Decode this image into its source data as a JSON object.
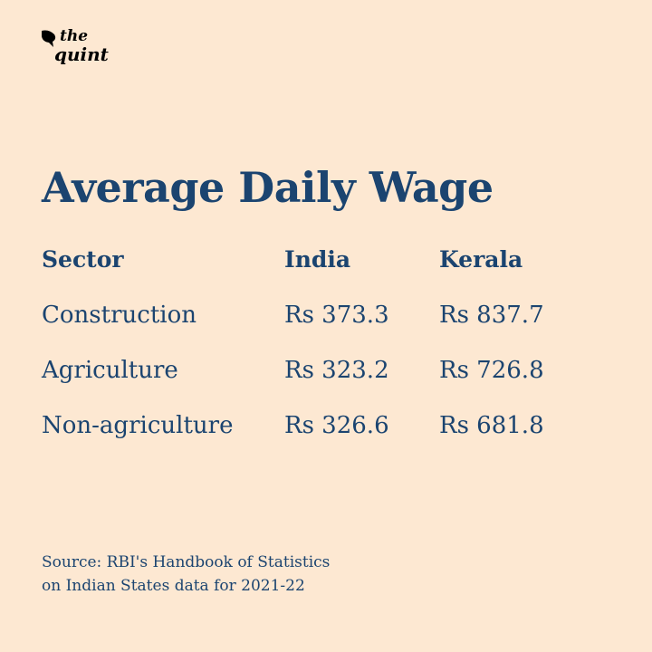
{
  "brand": {
    "line1": "the",
    "line2": "quint"
  },
  "chart_data": {
    "type": "table",
    "title": "Average Daily Wage",
    "columns": [
      "Sector",
      "India",
      "Kerala"
    ],
    "rows": [
      [
        "Construction",
        "Rs 373.3",
        "Rs 837.7"
      ],
      [
        "Agriculture",
        "Rs 323.2",
        "Rs 726.8"
      ],
      [
        "Non-agriculture",
        "Rs 326.6",
        "Rs 681.8"
      ]
    ]
  },
  "source": {
    "line1": "Source: RBI's Handbook of Statistics",
    "line2": "on Indian States data for 2021-22"
  },
  "colors": {
    "background": "#fde8d2",
    "text": "#1b4470"
  }
}
